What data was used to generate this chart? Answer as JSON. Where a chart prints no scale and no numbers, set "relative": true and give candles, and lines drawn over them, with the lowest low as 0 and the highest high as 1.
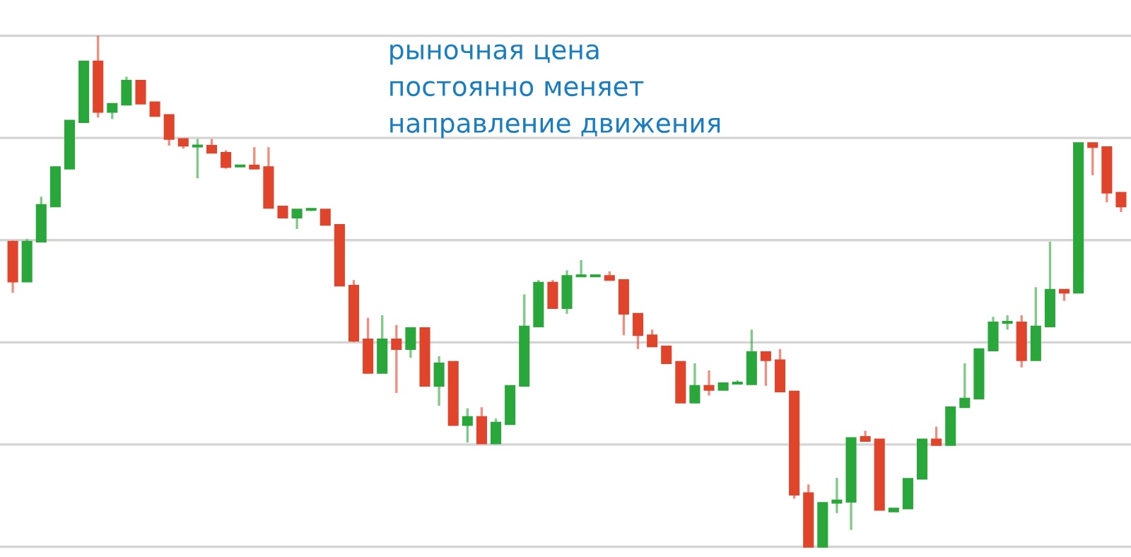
{
  "chart_data": {
    "type": "candlestick",
    "relative": true,
    "grid": "y",
    "annotations": [
      "рыночная цена\nпостоянно меняет\nнаправление движения"
    ],
    "categories": [
      null,
      null,
      null,
      null,
      null,
      null,
      null,
      null,
      null,
      null,
      null,
      null,
      null,
      null,
      null,
      null,
      null,
      null,
      null,
      null,
      null,
      null,
      null,
      null,
      null,
      null,
      null,
      null,
      null,
      null,
      null,
      null,
      null,
      null,
      null,
      null,
      null,
      null,
      null,
      null,
      null,
      null,
      null,
      null,
      null,
      null,
      null,
      null,
      null,
      null,
      null,
      null,
      null,
      null,
      null,
      null,
      null,
      null,
      null,
      null,
      null,
      null,
      null,
      null,
      null,
      null,
      null,
      null,
      null,
      null,
      null,
      null,
      null,
      null,
      null,
      null,
      null,
      null,
      null
    ],
    "ohlc": [
      [
        0.597,
        0.599,
        0.497,
        0.519
      ],
      [
        0.519,
        0.602,
        0.519,
        0.597
      ],
      [
        0.597,
        0.685,
        0.597,
        0.669
      ],
      [
        0.666,
        0.743,
        0.666,
        0.743
      ],
      [
        0.74,
        0.834,
        0.74,
        0.834
      ],
      [
        0.831,
        0.95,
        0.831,
        0.95
      ],
      [
        0.95,
        1.0,
        0.84,
        0.851
      ],
      [
        0.851,
        0.867,
        0.837,
        0.867
      ],
      [
        0.865,
        0.92,
        0.865,
        0.912
      ],
      [
        0.912,
        0.912,
        0.867,
        0.867
      ],
      [
        0.87,
        0.87,
        0.843,
        0.843
      ],
      [
        0.845,
        0.845,
        0.785,
        0.798
      ],
      [
        0.798,
        0.798,
        0.779,
        0.785
      ],
      [
        0.783,
        0.798,
        0.721,
        0.785
      ],
      [
        0.785,
        0.798,
        0.771,
        0.771
      ],
      [
        0.771,
        0.776,
        0.74,
        0.743
      ],
      [
        0.744,
        0.746,
        0.743,
        0.746
      ],
      [
        0.746,
        0.782,
        0.74,
        0.74
      ],
      [
        0.743,
        0.782,
        0.663,
        0.663
      ],
      [
        0.666,
        0.666,
        0.644,
        0.644
      ],
      [
        0.644,
        0.66,
        0.622,
        0.66
      ],
      [
        0.659,
        0.662,
        0.657,
        0.66
      ],
      [
        0.66,
        0.66,
        0.63,
        0.63
      ],
      [
        0.63,
        0.63,
        0.511,
        0.511
      ],
      [
        0.511,
        0.522,
        0.401,
        0.403
      ],
      [
        0.406,
        0.448,
        0.34,
        0.34
      ],
      [
        0.34,
        0.453,
        0.34,
        0.406
      ],
      [
        0.406,
        0.434,
        0.301,
        0.387
      ],
      [
        0.387,
        0.428,
        0.37,
        0.428
      ],
      [
        0.428,
        0.428,
        0.315,
        0.315
      ],
      [
        0.315,
        0.373,
        0.276,
        0.359
      ],
      [
        0.362,
        0.362,
        0.238,
        0.238
      ],
      [
        0.238,
        0.271,
        0.204,
        0.254
      ],
      [
        0.254,
        0.273,
        0.202,
        0.202
      ],
      [
        0.202,
        0.251,
        0.202,
        0.243
      ],
      [
        0.24,
        0.315,
        0.24,
        0.315
      ],
      [
        0.315,
        0.494,
        0.315,
        0.431
      ],
      [
        0.431,
        0.522,
        0.431,
        0.517
      ],
      [
        0.517,
        0.522,
        0.467,
        0.467
      ],
      [
        0.467,
        0.541,
        0.456,
        0.53
      ],
      [
        0.529,
        0.561,
        0.528,
        0.53
      ],
      [
        0.529,
        0.53,
        0.529,
        0.53
      ],
      [
        0.53,
        0.539,
        0.522,
        0.522
      ],
      [
        0.522,
        0.522,
        0.414,
        0.456
      ],
      [
        0.456,
        0.456,
        0.387,
        0.414
      ],
      [
        0.414,
        0.425,
        0.392,
        0.392
      ],
      [
        0.392,
        0.392,
        0.359,
        0.359
      ],
      [
        0.362,
        0.362,
        0.282,
        0.282
      ],
      [
        0.282,
        0.359,
        0.282,
        0.315
      ],
      [
        0.315,
        0.345,
        0.296,
        0.307
      ],
      [
        0.307,
        0.32,
        0.307,
        0.32
      ],
      [
        0.319,
        0.326,
        0.318,
        0.32
      ],
      [
        0.318,
        0.425,
        0.318,
        0.381
      ],
      [
        0.381,
        0.381,
        0.315,
        0.365
      ],
      [
        0.365,
        0.387,
        0.304,
        0.304
      ],
      [
        0.304,
        0.304,
        0.094,
        0.102
      ],
      [
        0.105,
        0.122,
        0,
        0
      ],
      [
        0,
        0.086,
        0,
        0.086
      ],
      [
        0.086,
        0.135,
        0.066,
        0.091
      ],
      [
        0.088,
        0.213,
        0.033,
        0.213
      ],
      [
        0.215,
        0.227,
        0.207,
        0.207
      ],
      [
        0.21,
        0.21,
        0.072,
        0.072
      ],
      [
        0.069,
        0.075,
        0.069,
        0.075
      ],
      [
        0.075,
        0.133,
        0.075,
        0.133
      ],
      [
        0.133,
        0.21,
        0.133,
        0.21
      ],
      [
        0.21,
        0.235,
        0.199,
        0.199
      ],
      [
        0.199,
        0.273,
        0.199,
        0.273
      ],
      [
        0.273,
        0.359,
        0.273,
        0.29
      ],
      [
        0.29,
        0.387,
        0.29,
        0.387
      ],
      [
        0.384,
        0.45,
        0.384,
        0.439
      ],
      [
        0.438,
        0.453,
        0.425,
        0.439
      ],
      [
        0.439,
        0.453,
        0.351,
        0.365
      ],
      [
        0.365,
        0.508,
        0.365,
        0.431
      ],
      [
        0.431,
        0.597,
        0.431,
        0.503
      ],
      [
        0.503,
        0.503,
        0.481,
        0.497
      ],
      [
        0.497,
        0.79,
        0.497,
        0.79
      ],
      [
        0.79,
        0.79,
        0.727,
        0.782
      ],
      [
        0.782,
        0.782,
        0.674,
        0.693
      ],
      [
        0.693,
        0.693,
        0.655,
        0.666
      ]
    ],
    "colors": [
      "#e0452c",
      "#2aa73a",
      "#2aa73a",
      "#2aa73a",
      "#2aa73a",
      "#2aa73a",
      "#e0452c",
      "#2aa73a",
      "#2aa73a",
      "#e0452c",
      "#e0452c",
      "#e0452c",
      "#e0452c",
      "#2aa73a",
      "#e0452c",
      "#e0452c",
      "#2aa73a",
      "#e0452c",
      "#e0452c",
      "#e0452c",
      "#2aa73a",
      "#2aa73a",
      "#e0452c",
      "#e0452c",
      "#e0452c",
      "#e0452c",
      "#2aa73a",
      "#e0452c",
      "#2aa73a",
      "#e0452c",
      "#2aa73a",
      "#e0452c",
      "#2aa73a",
      "#e0452c",
      "#2aa73a",
      "#2aa73a",
      "#2aa73a",
      "#2aa73a",
      "#e0452c",
      "#2aa73a",
      "#2aa73a",
      "#2aa73a",
      "#e0452c",
      "#e0452c",
      "#e0452c",
      "#e0452c",
      "#e0452c",
      "#e0452c",
      "#2aa73a",
      "#e0452c",
      "#2aa73a",
      "#2aa73a",
      "#2aa73a",
      "#e0452c",
      "#e0452c",
      "#e0452c",
      "#e0452c",
      "#2aa73a",
      "#2aa73a",
      "#2aa73a",
      "#e0452c",
      "#e0452c",
      "#2aa73a",
      "#2aa73a",
      "#2aa73a",
      "#e0452c",
      "#2aa73a",
      "#2aa73a",
      "#2aa73a",
      "#2aa73a",
      "#2aa73a",
      "#e0452c",
      "#2aa73a",
      "#2aa73a",
      "#e0452c",
      "#2aa73a",
      "#e0452c",
      "#e0452c",
      "#e0452c"
    ]
  }
}
